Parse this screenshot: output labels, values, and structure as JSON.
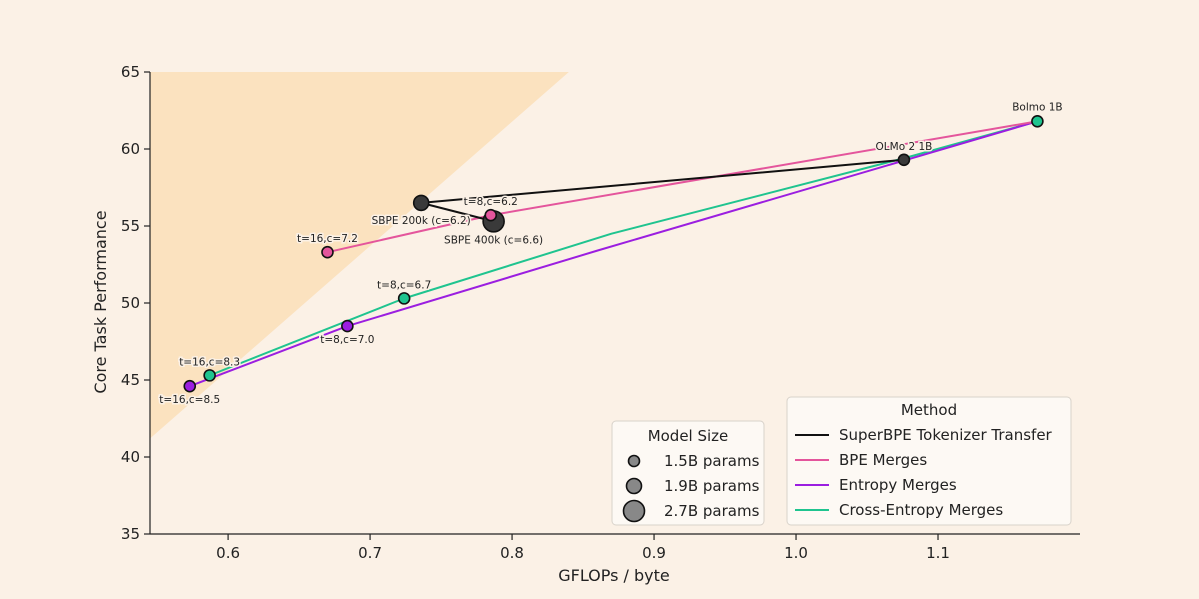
{
  "chart_data": {
    "type": "scatter",
    "xlabel": "GFLOPs / byte",
    "ylabel": "Core Task Performance",
    "xlim": [
      0.545,
      1.2
    ],
    "ylim": [
      35,
      65
    ],
    "x_ticks": [
      0.6,
      0.7,
      0.8,
      0.9,
      1.0,
      1.1
    ],
    "x_tick_labels": [
      "0.6",
      "0.7",
      "0.8",
      "0.9",
      "1.0",
      "1.1"
    ],
    "y_ticks": [
      35,
      40,
      45,
      50,
      55,
      60,
      65
    ],
    "y_tick_labels": [
      "35",
      "40",
      "45",
      "50",
      "55",
      "60",
      "65"
    ],
    "shaded_region": {
      "polygon": [
        [
          0.545,
          41.2
        ],
        [
          0.545,
          65
        ],
        [
          0.84,
          65
        ]
      ],
      "color": "#fbe2bf"
    },
    "series": [
      {
        "name": "SuperBPE Tokenizer Transfer",
        "color": "#111111",
        "path": [
          [
            1.076,
            59.3
          ],
          [
            0.736,
            56.5
          ],
          [
            0.787,
            55.3
          ]
        ],
        "points": [
          {
            "x": 1.076,
            "y": 59.3,
            "size": "1.5B",
            "label": "OLMo 2 1B"
          },
          {
            "x": 0.736,
            "y": 56.5,
            "size": "1.9B",
            "label": "SBPE 200k (c=6.2)"
          },
          {
            "x": 0.787,
            "y": 55.3,
            "size": "2.7B",
            "label": "SBPE 400k (c=6.6)"
          }
        ]
      },
      {
        "name": "BPE Merges",
        "color": "#e4559c",
        "path": [
          [
            0.67,
            53.3
          ],
          [
            0.785,
            55.7
          ],
          [
            1.17,
            61.8
          ]
        ],
        "points": [
          {
            "x": 0.67,
            "y": 53.3,
            "size": "1.5B",
            "label": "t=16,c=7.2"
          },
          {
            "x": 0.785,
            "y": 55.7,
            "size": "1.5B",
            "label": "t=8,c=6.2"
          }
        ]
      },
      {
        "name": "Entropy Merges",
        "color": "#9b1ee0",
        "path": [
          [
            0.573,
            44.6
          ],
          [
            0.684,
            48.5
          ],
          [
            0.86,
            53.4
          ],
          [
            1.076,
            59.25
          ],
          [
            1.17,
            61.8
          ]
        ],
        "points": [
          {
            "x": 0.573,
            "y": 44.6,
            "size": "1.5B",
            "label": "t=16,c=8.5"
          },
          {
            "x": 0.684,
            "y": 48.5,
            "size": "1.5B",
            "label": "t=8,c=7.0"
          }
        ]
      },
      {
        "name": "Cross-Entropy Merges",
        "color": "#1fc48f",
        "path": [
          [
            0.587,
            45.3
          ],
          [
            0.724,
            50.3
          ],
          [
            0.87,
            54.5
          ],
          [
            1.076,
            59.4
          ],
          [
            1.17,
            61.8
          ]
        ],
        "points": [
          {
            "x": 0.587,
            "y": 45.3,
            "size": "1.5B",
            "label": "t=16,c=8.3"
          },
          {
            "x": 0.724,
            "y": 50.3,
            "size": "1.5B",
            "label": "t=8,c=6.7"
          },
          {
            "x": 1.17,
            "y": 61.8,
            "size": "1.5B",
            "label": "Bolmo 1B"
          }
        ]
      }
    ],
    "legend_size": {
      "title": "Model Size",
      "placement": "bottom-center",
      "entries": [
        {
          "size": "1.5B",
          "label": "1.5B params"
        },
        {
          "size": "1.9B",
          "label": "1.9B params"
        },
        {
          "size": "2.7B",
          "label": "2.7B params"
        }
      ]
    },
    "legend_method": {
      "title": "Method",
      "placement": "bottom-right",
      "entries": [
        {
          "label": "SuperBPE Tokenizer Transfer",
          "color": "#111111"
        },
        {
          "label": "BPE Merges",
          "color": "#e4559c"
        },
        {
          "label": "Entropy Merges",
          "color": "#9b1ee0"
        },
        {
          "label": "Cross-Entropy Merges",
          "color": "#1fc48f"
        }
      ]
    }
  }
}
